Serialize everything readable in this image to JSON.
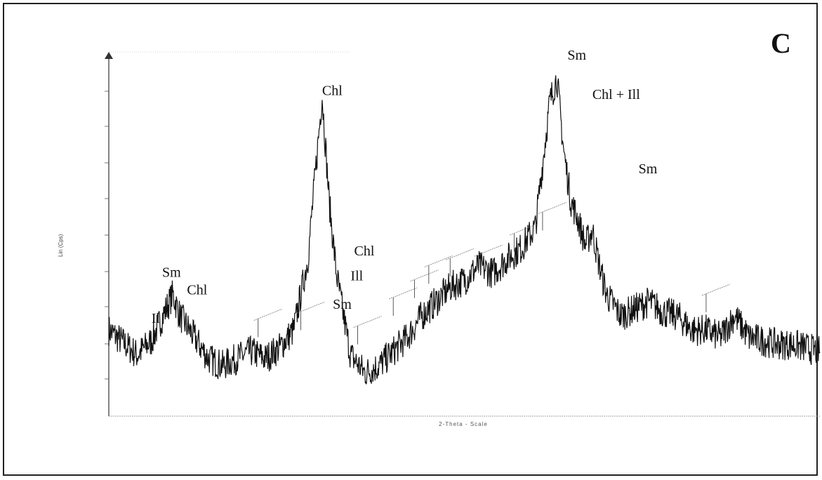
{
  "panel_letter": "C",
  "chart_data": {
    "type": "line",
    "title": "",
    "xlabel": "2-Theta - Scale",
    "ylabel": "Lin (Cps)",
    "xlim": [
      0,
      100
    ],
    "ylim": [
      0,
      100
    ],
    "grid": false,
    "legend": "none",
    "baseline": [
      [
        0,
        24
      ],
      [
        4,
        17
      ],
      [
        6,
        21
      ],
      [
        9,
        34
      ],
      [
        10,
        28
      ],
      [
        12,
        22
      ],
      [
        14,
        16
      ],
      [
        16,
        14
      ],
      [
        18,
        16
      ],
      [
        20,
        18
      ],
      [
        22,
        16
      ],
      [
        24,
        19
      ],
      [
        26,
        24
      ],
      [
        28,
        44
      ],
      [
        30,
        90
      ],
      [
        31,
        60
      ],
      [
        32,
        40
      ],
      [
        33,
        28
      ],
      [
        34,
        17
      ],
      [
        36,
        12
      ],
      [
        38,
        14
      ],
      [
        40,
        18
      ],
      [
        42,
        22
      ],
      [
        44,
        28
      ],
      [
        46,
        32
      ],
      [
        48,
        36
      ],
      [
        50,
        38
      ],
      [
        52,
        42
      ],
      [
        54,
        40
      ],
      [
        56,
        44
      ],
      [
        58,
        47
      ],
      [
        60,
        53
      ],
      [
        62,
        88
      ],
      [
        63,
        95
      ],
      [
        64,
        74
      ],
      [
        65,
        60
      ],
      [
        66,
        55
      ],
      [
        67,
        48
      ],
      [
        68,
        52
      ],
      [
        69,
        42
      ],
      [
        70,
        34
      ],
      [
        72,
        28
      ],
      [
        74,
        30
      ],
      [
        76,
        32
      ],
      [
        78,
        29
      ],
      [
        80,
        28
      ],
      [
        82,
        24
      ],
      [
        84,
        24
      ],
      [
        86,
        22
      ],
      [
        88,
        28
      ],
      [
        90,
        22
      ],
      [
        92,
        21
      ],
      [
        94,
        20
      ],
      [
        96,
        20
      ],
      [
        98,
        19
      ],
      [
        100,
        18
      ]
    ],
    "annotations": [
      {
        "text": "Chl",
        "x": 30,
        "y": 90
      },
      {
        "text": "Sm",
        "x": 7.5,
        "y": 39
      },
      {
        "text": "Chl",
        "x": 11,
        "y": 34
      },
      {
        "text": "Il",
        "x": 6,
        "y": 26
      },
      {
        "text": "Chl",
        "x": 34.5,
        "y": 45
      },
      {
        "text": "Ill",
        "x": 34,
        "y": 38
      },
      {
        "text": "Sm",
        "x": 31.5,
        "y": 30
      },
      {
        "text": "Sm",
        "x": 64.5,
        "y": 100
      },
      {
        "text": "Chl + Ill",
        "x": 68,
        "y": 89
      },
      {
        "text": "Sm",
        "x": 74.5,
        "y": 68
      }
    ]
  }
}
